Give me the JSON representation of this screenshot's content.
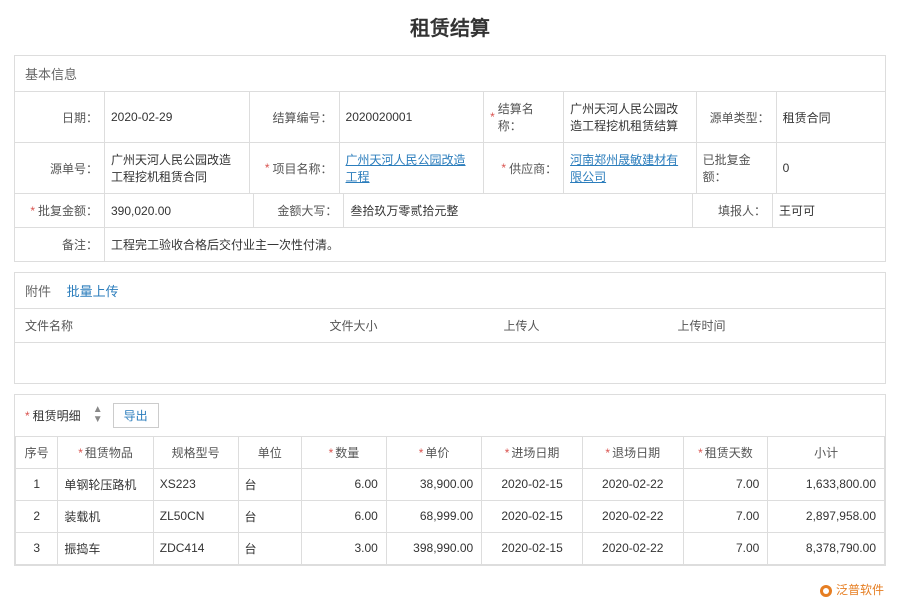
{
  "title": "租赁结算",
  "sections": {
    "basic": "基本信息",
    "attach": "附件",
    "attach_upload": "批量上传",
    "detail": "租赁明细",
    "export": "导出"
  },
  "fields": {
    "date_lbl": "日期：",
    "date_val": "2020-02-29",
    "settle_no_lbl": "结算编号：",
    "settle_no_val": "2020020001",
    "settle_name_lbl": "结算名称：",
    "settle_name_val": "广州天河人民公园改造工程挖机租赁结算",
    "src_type_lbl": "源单类型：",
    "src_type_val": "租赁合同",
    "src_no_lbl": "源单号：",
    "src_no_val": "广州天河人民公园改造工程挖机租赁合同",
    "proj_lbl": "项目名称：",
    "proj_val": "广州天河人民公园改造工程",
    "supplier_lbl": "供应商：",
    "supplier_val": "河南郑州晟敏建材有限公司",
    "approved_lbl": "已批复金额：",
    "approved_val": "0",
    "reply_amt_lbl": "批复金额：",
    "reply_amt_val": "390,020.00",
    "amt_cn_lbl": "金额大写：",
    "amt_cn_val": "叁拾玖万零贰拾元整",
    "filler_lbl": "填报人：",
    "filler_val": "王可可",
    "remark_lbl": "备注：",
    "remark_val": "工程完工验收合格后交付业主一次性付清。"
  },
  "attach_cols": {
    "name": "文件名称",
    "size": "文件大小",
    "uploader": "上传人",
    "time": "上传时间"
  },
  "detail_cols": {
    "seq": "序号",
    "item": "租赁物品",
    "spec": "规格型号",
    "unit": "单位",
    "qty": "数量",
    "price": "单价",
    "in_date": "进场日期",
    "out_date": "退场日期",
    "days": "租赁天数",
    "subtotal": "小计"
  },
  "detail_rows": [
    {
      "seq": "1",
      "item": "单钢轮压路机",
      "spec": "XS223",
      "unit": "台",
      "qty": "6.00",
      "price": "38,900.00",
      "in": "2020-02-15",
      "out": "2020-02-22",
      "days": "7.00",
      "sub": "1,633,800.00"
    },
    {
      "seq": "2",
      "item": "装载机",
      "spec": "ZL50CN",
      "unit": "台",
      "qty": "6.00",
      "price": "68,999.00",
      "in": "2020-02-15",
      "out": "2020-02-22",
      "days": "7.00",
      "sub": "2,897,958.00"
    },
    {
      "seq": "3",
      "item": "振捣车",
      "spec": "ZDC414",
      "unit": "台",
      "qty": "3.00",
      "price": "398,990.00",
      "in": "2020-02-15",
      "out": "2020-02-22",
      "days": "7.00",
      "sub": "8,378,790.00"
    }
  ],
  "logo": {
    "brand": "泛普软件"
  },
  "colors": {
    "link": "#2b7dbc",
    "required": "#d9534f",
    "border": "#dddddd"
  }
}
